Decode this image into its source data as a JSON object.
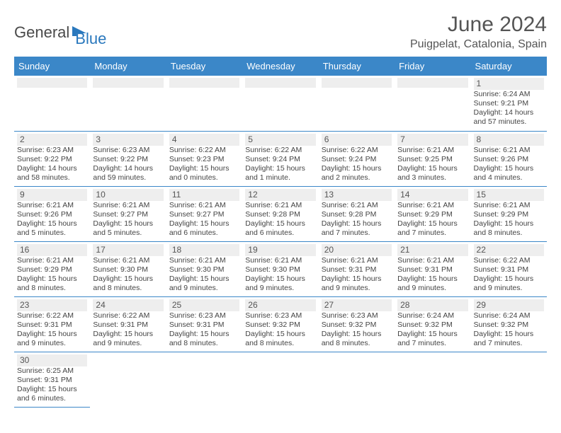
{
  "header": {
    "logo_part1": "General",
    "logo_part2": "Blue",
    "month_title": "June 2024",
    "location": "Puigpelat, Catalonia, Spain"
  },
  "colors": {
    "header_bg": "#3b87c8",
    "header_text": "#ffffff",
    "row_divider": "#3b87c8",
    "numbar_bg": "#eeeeee",
    "logo_blue": "#2a78bd",
    "logo_gray": "#4a4a4a",
    "page_bg": "#ffffff",
    "body_text": "#444444"
  },
  "day_headers": [
    "Sunday",
    "Monday",
    "Tuesday",
    "Wednesday",
    "Thursday",
    "Friday",
    "Saturday"
  ],
  "weeks": [
    [
      null,
      null,
      null,
      null,
      null,
      null,
      {
        "n": "1",
        "sr": "Sunrise: 6:24 AM",
        "ss": "Sunset: 9:21 PM",
        "d1": "Daylight: 14 hours",
        "d2": "and 57 minutes."
      }
    ],
    [
      {
        "n": "2",
        "sr": "Sunrise: 6:23 AM",
        "ss": "Sunset: 9:22 PM",
        "d1": "Daylight: 14 hours",
        "d2": "and 58 minutes."
      },
      {
        "n": "3",
        "sr": "Sunrise: 6:23 AM",
        "ss": "Sunset: 9:22 PM",
        "d1": "Daylight: 14 hours",
        "d2": "and 59 minutes."
      },
      {
        "n": "4",
        "sr": "Sunrise: 6:22 AM",
        "ss": "Sunset: 9:23 PM",
        "d1": "Daylight: 15 hours",
        "d2": "and 0 minutes."
      },
      {
        "n": "5",
        "sr": "Sunrise: 6:22 AM",
        "ss": "Sunset: 9:24 PM",
        "d1": "Daylight: 15 hours",
        "d2": "and 1 minute."
      },
      {
        "n": "6",
        "sr": "Sunrise: 6:22 AM",
        "ss": "Sunset: 9:24 PM",
        "d1": "Daylight: 15 hours",
        "d2": "and 2 minutes."
      },
      {
        "n": "7",
        "sr": "Sunrise: 6:21 AM",
        "ss": "Sunset: 9:25 PM",
        "d1": "Daylight: 15 hours",
        "d2": "and 3 minutes."
      },
      {
        "n": "8",
        "sr": "Sunrise: 6:21 AM",
        "ss": "Sunset: 9:26 PM",
        "d1": "Daylight: 15 hours",
        "d2": "and 4 minutes."
      }
    ],
    [
      {
        "n": "9",
        "sr": "Sunrise: 6:21 AM",
        "ss": "Sunset: 9:26 PM",
        "d1": "Daylight: 15 hours",
        "d2": "and 5 minutes."
      },
      {
        "n": "10",
        "sr": "Sunrise: 6:21 AM",
        "ss": "Sunset: 9:27 PM",
        "d1": "Daylight: 15 hours",
        "d2": "and 5 minutes."
      },
      {
        "n": "11",
        "sr": "Sunrise: 6:21 AM",
        "ss": "Sunset: 9:27 PM",
        "d1": "Daylight: 15 hours",
        "d2": "and 6 minutes."
      },
      {
        "n": "12",
        "sr": "Sunrise: 6:21 AM",
        "ss": "Sunset: 9:28 PM",
        "d1": "Daylight: 15 hours",
        "d2": "and 6 minutes."
      },
      {
        "n": "13",
        "sr": "Sunrise: 6:21 AM",
        "ss": "Sunset: 9:28 PM",
        "d1": "Daylight: 15 hours",
        "d2": "and 7 minutes."
      },
      {
        "n": "14",
        "sr": "Sunrise: 6:21 AM",
        "ss": "Sunset: 9:29 PM",
        "d1": "Daylight: 15 hours",
        "d2": "and 7 minutes."
      },
      {
        "n": "15",
        "sr": "Sunrise: 6:21 AM",
        "ss": "Sunset: 9:29 PM",
        "d1": "Daylight: 15 hours",
        "d2": "and 8 minutes."
      }
    ],
    [
      {
        "n": "16",
        "sr": "Sunrise: 6:21 AM",
        "ss": "Sunset: 9:29 PM",
        "d1": "Daylight: 15 hours",
        "d2": "and 8 minutes."
      },
      {
        "n": "17",
        "sr": "Sunrise: 6:21 AM",
        "ss": "Sunset: 9:30 PM",
        "d1": "Daylight: 15 hours",
        "d2": "and 8 minutes."
      },
      {
        "n": "18",
        "sr": "Sunrise: 6:21 AM",
        "ss": "Sunset: 9:30 PM",
        "d1": "Daylight: 15 hours",
        "d2": "and 9 minutes."
      },
      {
        "n": "19",
        "sr": "Sunrise: 6:21 AM",
        "ss": "Sunset: 9:30 PM",
        "d1": "Daylight: 15 hours",
        "d2": "and 9 minutes."
      },
      {
        "n": "20",
        "sr": "Sunrise: 6:21 AM",
        "ss": "Sunset: 9:31 PM",
        "d1": "Daylight: 15 hours",
        "d2": "and 9 minutes."
      },
      {
        "n": "21",
        "sr": "Sunrise: 6:21 AM",
        "ss": "Sunset: 9:31 PM",
        "d1": "Daylight: 15 hours",
        "d2": "and 9 minutes."
      },
      {
        "n": "22",
        "sr": "Sunrise: 6:22 AM",
        "ss": "Sunset: 9:31 PM",
        "d1": "Daylight: 15 hours",
        "d2": "and 9 minutes."
      }
    ],
    [
      {
        "n": "23",
        "sr": "Sunrise: 6:22 AM",
        "ss": "Sunset: 9:31 PM",
        "d1": "Daylight: 15 hours",
        "d2": "and 9 minutes."
      },
      {
        "n": "24",
        "sr": "Sunrise: 6:22 AM",
        "ss": "Sunset: 9:31 PM",
        "d1": "Daylight: 15 hours",
        "d2": "and 9 minutes."
      },
      {
        "n": "25",
        "sr": "Sunrise: 6:23 AM",
        "ss": "Sunset: 9:31 PM",
        "d1": "Daylight: 15 hours",
        "d2": "and 8 minutes."
      },
      {
        "n": "26",
        "sr": "Sunrise: 6:23 AM",
        "ss": "Sunset: 9:32 PM",
        "d1": "Daylight: 15 hours",
        "d2": "and 8 minutes."
      },
      {
        "n": "27",
        "sr": "Sunrise: 6:23 AM",
        "ss": "Sunset: 9:32 PM",
        "d1": "Daylight: 15 hours",
        "d2": "and 8 minutes."
      },
      {
        "n": "28",
        "sr": "Sunrise: 6:24 AM",
        "ss": "Sunset: 9:32 PM",
        "d1": "Daylight: 15 hours",
        "d2": "and 7 minutes."
      },
      {
        "n": "29",
        "sr": "Sunrise: 6:24 AM",
        "ss": "Sunset: 9:32 PM",
        "d1": "Daylight: 15 hours",
        "d2": "and 7 minutes."
      }
    ],
    [
      {
        "n": "30",
        "sr": "Sunrise: 6:25 AM",
        "ss": "Sunset: 9:31 PM",
        "d1": "Daylight: 15 hours",
        "d2": "and 6 minutes."
      },
      null,
      null,
      null,
      null,
      null,
      null
    ]
  ]
}
